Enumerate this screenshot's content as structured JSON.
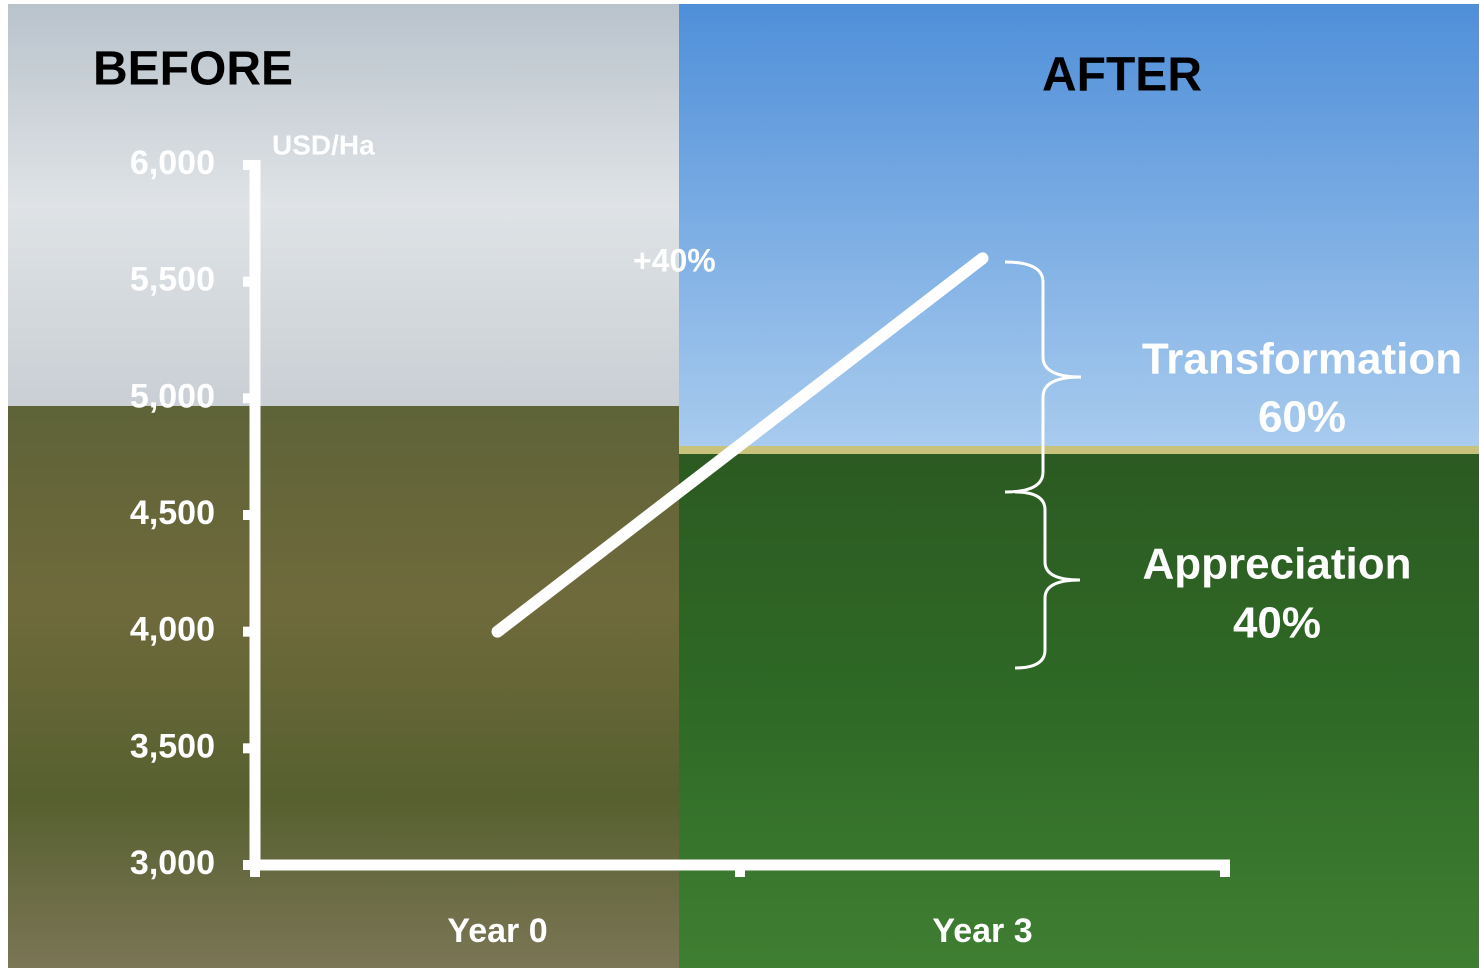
{
  "chart_data": {
    "type": "line",
    "panels": [
      "BEFORE",
      "AFTER"
    ],
    "y_label": "USD/Ha",
    "categories": [
      "Year 0",
      "Year 3"
    ],
    "values": [
      4000,
      5600
    ],
    "color": "#ffffff",
    "change_label": "+40%",
    "breakdown": [
      {
        "name": "Transformation",
        "label": "60%"
      },
      {
        "name": "Appreciation",
        "label": "40%"
      }
    ],
    "ylim": [
      3000,
      6000
    ],
    "yticks": [
      {
        "value": 3000,
        "label": "3,000"
      },
      {
        "value": 3500,
        "label": "3,500"
      },
      {
        "value": 4000,
        "label": "4,000"
      },
      {
        "value": 4500,
        "label": "4,500"
      },
      {
        "value": 5000,
        "label": "5,000"
      },
      {
        "value": 5500,
        "label": "5,500"
      },
      {
        "value": 6000,
        "label": "6,000"
      }
    ]
  }
}
